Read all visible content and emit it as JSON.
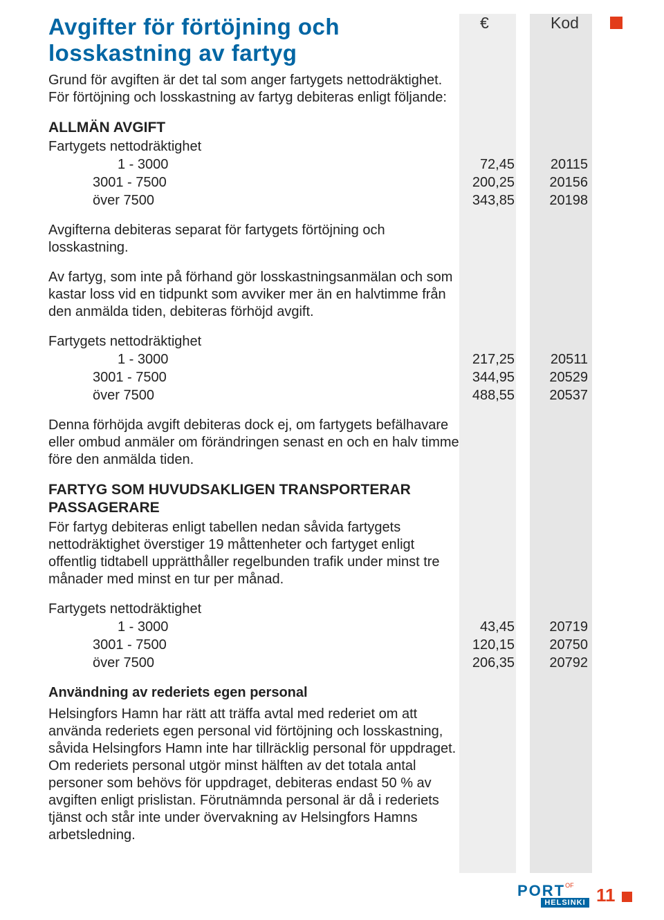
{
  "header": {
    "title": "Avgifter för förtöjning och losskastning av fartyg",
    "eur_symbol": "€",
    "kod_label": "Kod"
  },
  "intro": "Grund för avgiften är det tal som anger fartygets nettodräktighet. För förtöjning och losskastning av fartyg debiteras enligt följande:",
  "section1": {
    "heading": "ALLMÄN AVGIFT",
    "sub": "Fartygets nettodräktighet",
    "rows": [
      {
        "label": "1 - 3000",
        "eur": "72,45",
        "kod": "20115"
      },
      {
        "label": "3001 - 7500",
        "eur": "200,25",
        "kod": "20156"
      },
      {
        "label": "över   7500",
        "eur": "343,85",
        "kod": "20198"
      }
    ]
  },
  "note1": "Avgifterna debiteras separat för fartygets förtöjning och losskastning.",
  "note2": "Av fartyg, som inte på förhand gör losskastningsanmälan och som kastar loss vid en tidpunkt som avviker mer än en halvtimme från den anmälda tiden, debiteras förhöjd avgift.",
  "section2": {
    "sub": "Fartygets nettodräktighet",
    "rows": [
      {
        "label": "1 - 3000",
        "eur": "217,25",
        "kod": "20511"
      },
      {
        "label": "3001 - 7500",
        "eur": "344,95",
        "kod": "20529"
      },
      {
        "label": "över   7500",
        "eur": "488,55",
        "kod": "20537"
      }
    ]
  },
  "note3": "Denna förhöjda avgift debiteras dock ej, om fartygets befälhavare eller ombud anmäler om förändringen senast en och en halv timme före den anmälda tiden.",
  "section3": {
    "heading": "FARTYG SOM HUVUDSAKLIGEN TRANSPORTERAR PASSAGERARE",
    "lead": "För fartyg debiteras enligt tabellen nedan såvida fartygets nettodräktighet överstiger 19 måttenheter och fartyget enligt offentlig tidtabell upprätthåller regelbunden trafik under minst tre månader med minst en tur per månad.",
    "sub": "Fartygets nettodräktighet",
    "rows": [
      {
        "label": "1 -  3000",
        "eur": "43,45",
        "kod": "20719"
      },
      {
        "label": "3001 -  7500",
        "eur": "120,15",
        "kod": "20750"
      },
      {
        "label": "över   7500",
        "eur": "206,35",
        "kod": "20792"
      }
    ]
  },
  "section4": {
    "heading": "Användning av rederiets egen personal",
    "body": "Helsingfors Hamn har rätt att träffa avtal med rederiet om att använda rederiets egen personal vid förtöjning och losskastning, såvida Helsingfors Hamn inte har tillräcklig personal för uppdraget. Om rederiets personal utgör minst hälften av det totala antal personer som behövs för uppdraget, debiteras endast 50 % av avgiften enligt prislistan. Förutnämnda personal är då i rederiets tjänst och står inte under övervakning av Helsingfors Hamns arbetsledning."
  },
  "footer": {
    "logo_main": "PORT",
    "logo_of": "OF",
    "logo_sub": "HELSINKI",
    "page": "11"
  },
  "colors": {
    "title": "#0066a4",
    "accent": "#e23c1a",
    "band_light": "#eeeeee",
    "band_dark": "#e6e6e6"
  }
}
